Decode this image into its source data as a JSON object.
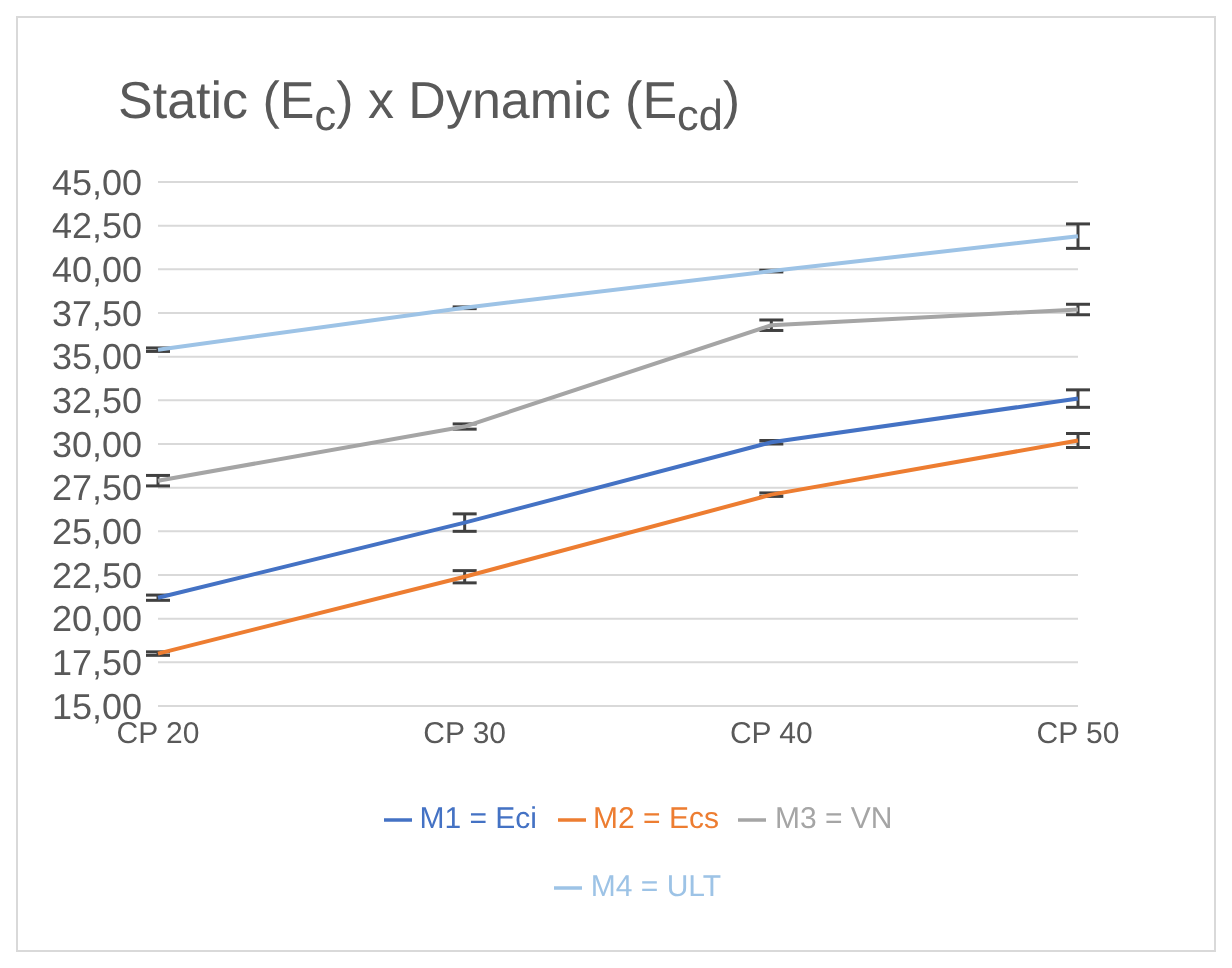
{
  "chart_data": {
    "type": "line",
    "title": "Static (E$_{c}$) x Dynamic (E$_{cd}$)",
    "categories": [
      "CP 20",
      "CP 30",
      "CP 40",
      "CP 50"
    ],
    "series": [
      {
        "name": "M1 = Eci",
        "color": "#4472c4",
        "values": [
          21.2,
          25.5,
          30.1,
          32.6
        ],
        "errors": [
          0.15,
          0.5,
          0.1,
          0.5
        ]
      },
      {
        "name": "M2 = Ecs",
        "color": "#ed7d31",
        "values": [
          18.0,
          22.4,
          27.1,
          30.2
        ],
        "errors": [
          0.1,
          0.35,
          0.1,
          0.4
        ]
      },
      {
        "name": "M3 = VN",
        "color": "#a5a5a5",
        "values": [
          27.9,
          31.0,
          36.8,
          37.7
        ],
        "errors": [
          0.3,
          0.15,
          0.3,
          0.3
        ]
      },
      {
        "name": "M4 = ULT",
        "color": "#9dc3e6",
        "values": [
          35.4,
          37.8,
          39.9,
          41.9
        ],
        "errors": [
          0.1,
          0.05,
          0.05,
          0.7
        ]
      }
    ],
    "ylim": [
      15,
      45
    ],
    "yticks": [
      {
        "value": 15,
        "label": "15,00"
      },
      {
        "value": 17.5,
        "label": "17,50"
      },
      {
        "value": 20,
        "label": "20,00"
      },
      {
        "value": 22.5,
        "label": "22,50"
      },
      {
        "value": 25,
        "label": "25,00"
      },
      {
        "value": 27.5,
        "label": "27,50"
      },
      {
        "value": 30,
        "label": "30,00"
      },
      {
        "value": 32.5,
        "label": "32,50"
      },
      {
        "value": 35,
        "label": "35,00"
      },
      {
        "value": 37.5,
        "label": "37,50"
      },
      {
        "value": 40,
        "label": "40,00"
      },
      {
        "value": 42.5,
        "label": "42,50"
      },
      {
        "value": 45,
        "label": "45,00"
      }
    ],
    "grid": "y",
    "legend": "bottom",
    "marker": "none",
    "line_style": "solid"
  }
}
